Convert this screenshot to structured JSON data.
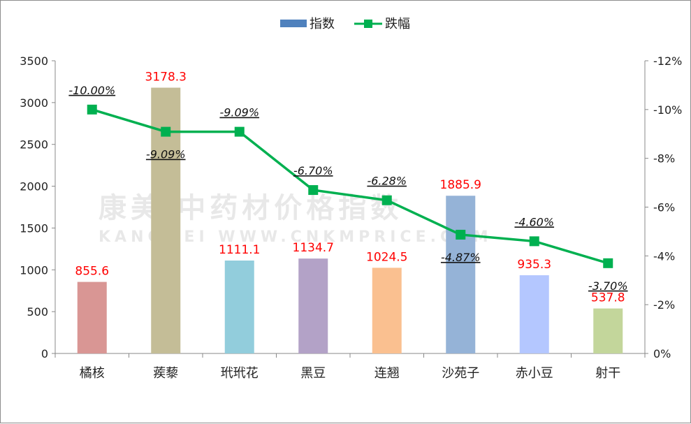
{
  "watermark": {
    "cn": "康美·中药材价格指数",
    "en": "KANGMEI  WWW.CNKMPRICE.COM"
  },
  "legend": {
    "bar_label": "指数",
    "line_label": "跌幅"
  },
  "colors": {
    "line": "#00b050",
    "value_label": "#ff0000",
    "bars": [
      "#d99694",
      "#c4bd97",
      "#92cddc",
      "#b3a2c7",
      "#fac090",
      "#95b3d7",
      "#b4c7ff",
      "#c3d69b"
    ],
    "legend_bar": "#4f81bd"
  },
  "chart_data": {
    "type": "bar",
    "categories": [
      "橘核",
      "蒺藜",
      "玳玳花",
      "黑豆",
      "连翘",
      "沙苑子",
      "赤小豆",
      "射干"
    ],
    "series": [
      {
        "name": "指数",
        "type": "bar",
        "axis": "left",
        "values": [
          855.6,
          3178.3,
          1111.1,
          1134.7,
          1024.5,
          1885.9,
          935.3,
          537.8
        ],
        "labels": [
          "855.6",
          "3178.3",
          "1111.1",
          "1134.7",
          "1024.5",
          "1885.9",
          "935.3",
          "537.8"
        ]
      },
      {
        "name": "跌幅",
        "type": "line",
        "axis": "right",
        "values": [
          -10.0,
          -9.09,
          -9.09,
          -6.7,
          -6.28,
          -4.87,
          -4.6,
          -3.7
        ],
        "labels": [
          "-10.00%",
          "-9.09%",
          "-9.09%",
          "-6.70%",
          "-6.28%",
          "-4.87%",
          "-4.60%",
          "-3.70%"
        ]
      }
    ],
    "y_left": {
      "ylim": [
        0,
        3500
      ],
      "ticks": [
        "0",
        "500",
        "1000",
        "1500",
        "2000",
        "2500",
        "3000",
        "3500"
      ]
    },
    "y_right": {
      "ylim": [
        0,
        -12
      ],
      "reversed": true,
      "ticks": [
        "0%",
        "-2%",
        "-4%",
        "-6%",
        "-8%",
        "-10%",
        "-12%"
      ]
    },
    "grid": false,
    "legend_position": "top"
  }
}
